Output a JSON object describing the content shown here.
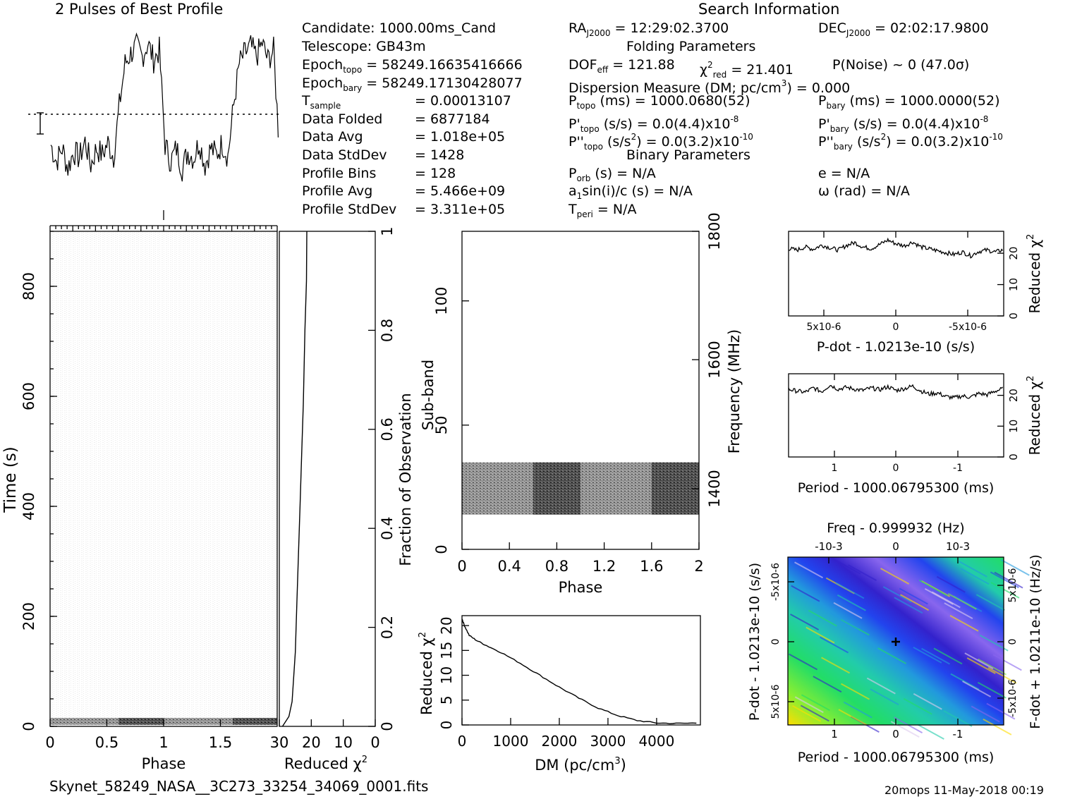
{
  "header": {
    "profile_title": "2 Pulses of Best Profile",
    "search_title": "Search Information",
    "folding_title": "Folding Parameters",
    "binary_title": "Binary Parameters"
  },
  "info": {
    "candidate": "Candidate:  1000.00ms_Cand",
    "telescope": "Telescope:  GB43m",
    "epoch_topo_label": "Epoch",
    "epoch_topo_sub": "topo",
    "epoch_topo_val": " = 58249.16635416666",
    "epoch_bary_label": "Epoch",
    "epoch_bary_sub": "bary",
    "epoch_bary_val": " = 58249.17130428077",
    "t_sample_label": "T",
    "t_sample_sub": "sample",
    "t_sample_val": "=   0.00013107",
    "data_folded_label": "Data Folded",
    "data_folded_val": "=   6877184",
    "data_avg_label": "Data Avg",
    "data_avg_val": "=   1.018e+05",
    "data_stddev_label": "Data StdDev",
    "data_stddev_val": "=   1428",
    "profile_bins_label": "Profile Bins",
    "profile_bins_val": "=   128",
    "profile_avg_label": "Profile Avg",
    "profile_avg_val": "=   5.466e+09",
    "profile_stddev_label": "Profile StdDev",
    "profile_stddev_val": "=   3.311e+05"
  },
  "search": {
    "ra_label": "RA",
    "ra_sub": "J2000",
    "ra_val": " = 12:29:02.3700",
    "dec_label": "DEC",
    "dec_sub": "J2000",
    "dec_val": " = 02:02:17.9800",
    "dof_label": "DOF",
    "dof_sub": "eff",
    "dof_val": " = 121.88",
    "chi_label": "χ",
    "chi_sup": "2",
    "chi_sub": "red",
    "chi_val": " = 21.401",
    "pnoise": "P(Noise) ~ 0    (47.0σ)",
    "dm_a": "Dispersion Measure (DM; pc/cm",
    "dm_sup": "3",
    "dm_b": ") = 0.000",
    "ptopo_label": "P",
    "ptopo_sub": "topo",
    "ptopo_val": " (ms) =  1000.0680(52)",
    "pbary_label": "P",
    "pbary_sub": "bary",
    "pbary_val": " (ms) =  1000.0000(52)",
    "pdtopo_label": "P'",
    "pdtopo_sub": "topo",
    "pdtopo_val": " (s/s) = 0.0(4.4)x10",
    "pdtopo_sup": "-8",
    "pdbary_label": "P'",
    "pdbary_sub": "bary",
    "pdbary_val": " (s/s) = 0.0(4.4)x10",
    "pdbary_sup": "-8",
    "pddtopo_label": "P''",
    "pddtopo_sub": "topo",
    "pddtopo_val": " (s/s",
    "pddtopo_mid": "2",
    "pddtopo_val2": ") = 0.0(3.2)x10",
    "pddtopo_sup": "-10",
    "pddbary_label": "P''",
    "pddbary_sub": "bary",
    "pddbary_val": " (s/s",
    "pddbary_mid": "2",
    "pddbary_val2": ") = 0.0(3.2)x10",
    "pddbary_sup": "-10",
    "porb_label": "P",
    "porb_sub": "orb",
    "porb_val": " (s) = N/A",
    "e_val": "e = N/A",
    "a1_label": "a",
    "a1_sub": "1",
    "a1_val": "sin(i)/c (s) = N/A",
    "omega_val": "ω (rad) = N/A",
    "tperi_label": "T",
    "tperi_sub": "peri",
    "tperi_val": " = N/A"
  },
  "footer": {
    "filename": "Skynet_58249_NASA__3C273_33254_34069_0001.fits",
    "stamp": "20mops 11-May-2018 00:19"
  },
  "chart_data": [
    {
      "id": "profile",
      "type": "line",
      "title": "2 Pulses of Best Profile",
      "x": [
        0,
        0.05,
        0.1,
        0.15,
        0.2,
        0.25,
        0.3,
        0.35,
        0.4,
        0.45,
        0.5,
        0.55,
        0.6,
        0.65,
        0.7,
        0.75,
        0.8,
        0.85,
        0.9,
        0.95,
        1.0,
        1.05,
        1.1,
        1.15,
        1.2,
        1.25,
        1.3,
        1.35,
        1.4,
        1.45,
        1.5,
        1.55,
        1.6,
        1.65,
        1.7,
        1.75,
        1.8,
        1.85,
        1.9,
        1.95,
        2.0
      ],
      "y": [
        0.32,
        0.22,
        0.3,
        0.18,
        0.28,
        0.24,
        0.34,
        0.2,
        0.3,
        0.26,
        0.33,
        0.25,
        0.55,
        0.8,
        0.86,
        0.9,
        0.84,
        0.92,
        0.82,
        0.88,
        0.32,
        0.22,
        0.3,
        0.18,
        0.28,
        0.24,
        0.34,
        0.2,
        0.3,
        0.26,
        0.33,
        0.25,
        0.55,
        0.8,
        0.86,
        0.9,
        0.84,
        0.92,
        0.82,
        0.88,
        0.3
      ],
      "xlim": [
        0,
        2
      ],
      "mean_level": 0.5
    },
    {
      "id": "time-phase",
      "type": "heatmap",
      "xlabel": "Phase",
      "ylabel": "Time (s)",
      "x_ticks": [
        "0",
        "0.5",
        "1",
        "1.5"
      ],
      "y_ticks": [
        "0",
        "200",
        "400",
        "600",
        "800"
      ],
      "xlim": [
        0,
        2
      ],
      "ylim": [
        0,
        900
      ]
    },
    {
      "id": "time-chi2",
      "type": "line",
      "xlabel": "Reduced χ2",
      "ylabel": "Fraction of Observation",
      "x_ticks": [
        "30",
        "20",
        "10",
        "0"
      ],
      "y_ticks": [
        "0",
        "0.2",
        "0.4",
        "0.6",
        "0.8",
        "1"
      ],
      "xlim": [
        30,
        0
      ],
      "ylim": [
        0,
        1
      ],
      "x": [
        29,
        27,
        26,
        25,
        24.5,
        24,
        23.5,
        23,
        22.5,
        22,
        21.5,
        21.4
      ],
      "y": [
        0,
        0.02,
        0.05,
        0.15,
        0.25,
        0.35,
        0.45,
        0.55,
        0.65,
        0.8,
        0.9,
        1.0
      ]
    },
    {
      "id": "subband-phase",
      "type": "heatmap",
      "xlabel": "Phase",
      "ylabel": "Sub-band",
      "y2label": "Frequency (MHz)",
      "x_ticks": [
        "0",
        "0.4",
        "0.8",
        "1.2",
        "1.6",
        "2"
      ],
      "y_ticks": [
        "0",
        "50",
        "100"
      ],
      "y2_ticks": [
        "1400",
        "1600",
        "1800"
      ],
      "xlim": [
        0,
        2
      ],
      "ylim": [
        0,
        128
      ],
      "active_subbands": [
        14,
        35
      ]
    },
    {
      "id": "dm-chi2",
      "type": "line",
      "xlabel": "DM (pc/cm3)",
      "ylabel": "Reduced χ2",
      "x_ticks": [
        "0",
        "1000",
        "2000",
        "3000",
        "4000"
      ],
      "y_ticks": [
        "0",
        "5",
        "10",
        "15",
        "20"
      ],
      "xlim": [
        0,
        4900
      ],
      "ylim": [
        0,
        22
      ],
      "x": [
        0,
        50,
        150,
        300,
        500,
        800,
        1200,
        1600,
        2000,
        2400,
        2800,
        3200,
        3600,
        4000,
        4400,
        4900
      ],
      "y": [
        21.4,
        20.0,
        18.0,
        17.0,
        16.0,
        14.6,
        12.4,
        10.0,
        7.6,
        5.4,
        3.4,
        1.9,
        0.9,
        0.4,
        0.3,
        0.4
      ]
    },
    {
      "id": "pdot-chi2",
      "type": "line",
      "xlabel": "P-dot - 1.0213e-10 (s/s)",
      "ylabel": "Reduced χ2",
      "x_ticks": [
        "5x10-6",
        "0",
        "-5x10-6"
      ],
      "y_ticks": [
        "0",
        "10",
        "20"
      ],
      "ylim": [
        0,
        27
      ],
      "y": [
        21.5,
        21.0,
        22.0,
        21.3,
        22.6,
        21.8,
        21.0,
        22.5,
        23.4,
        22.0,
        21.5,
        22.8,
        24.2,
        23.0,
        22.4,
        23.6,
        22.0,
        21.4,
        20.8,
        20.2,
        19.6,
        20.4,
        19.2,
        20.6,
        21.0,
        20.4,
        21.2
      ]
    },
    {
      "id": "period-chi2",
      "type": "line",
      "xlabel": "Period - 1000.06795300 (ms)",
      "ylabel": "Reduced χ2",
      "x_ticks": [
        "1",
        "0",
        "-1"
      ],
      "y_ticks": [
        "0",
        "10",
        "20"
      ],
      "ylim": [
        0,
        27
      ],
      "y": [
        22.0,
        21.4,
        21.0,
        22.4,
        21.2,
        23.4,
        22.0,
        22.6,
        22.0,
        21.6,
        22.4,
        21.8,
        22.8,
        21.6,
        22.2,
        23.0,
        21.4,
        20.4,
        20.8,
        19.6,
        19.2,
        19.8,
        19.4,
        20.6,
        20.2,
        21.4,
        22.2
      ]
    },
    {
      "id": "p-pdot",
      "type": "heatmap",
      "xlabel": "Period - 1000.06795300 (ms)",
      "ylabel": "P-dot - 1.0213e-10 (s/s)",
      "x2label": "Freq - 0.999932 (Hz)",
      "y2label": "F-dot + 1.0211e-10 (Hz/s)",
      "x_ticks": [
        "1",
        "0",
        "-1"
      ],
      "x2_ticks": [
        "-10-3",
        "0",
        "10-3"
      ],
      "y_ticks": [
        "5x10-6",
        "0",
        "-5x10-6"
      ],
      "y2_ticks": [
        "5x10-6",
        "0",
        "-5x10-6"
      ],
      "colors": [
        "#ffdd00",
        "#88ee33",
        "#22dd66",
        "#22ccaa",
        "#2299dd",
        "#2244ee",
        "#3322cc",
        "#8866ee",
        "#ddccee"
      ]
    }
  ]
}
